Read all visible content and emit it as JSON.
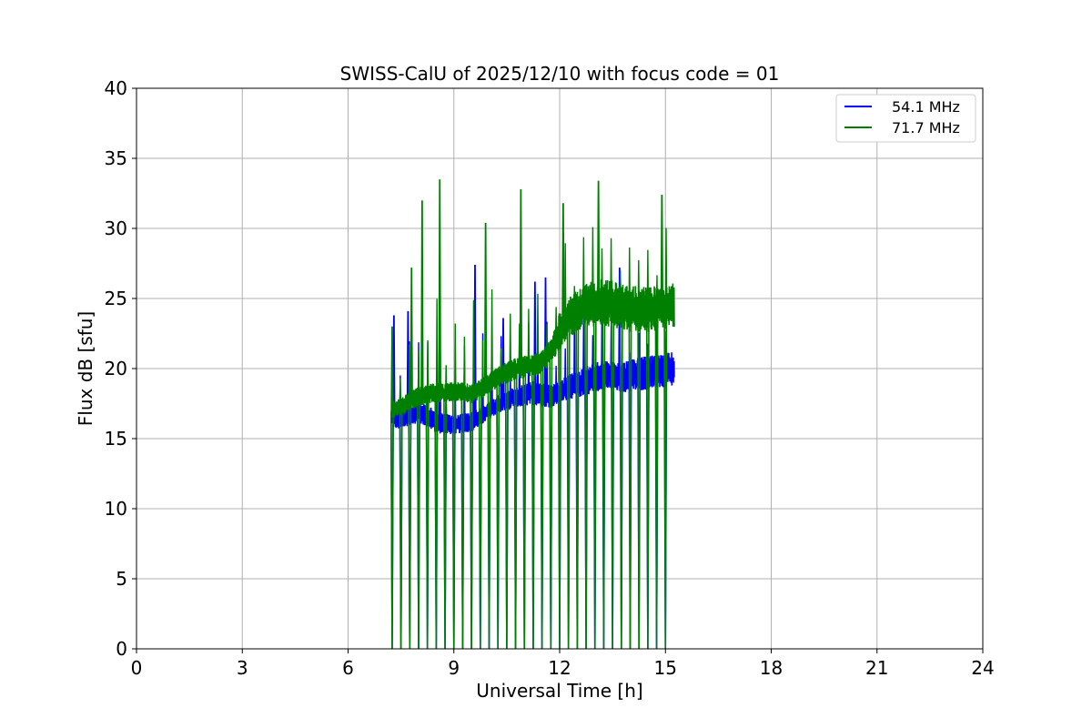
{
  "chart_data": {
    "type": "line",
    "title": "SWISS-CalU of 2025/12/10 with focus code = 01",
    "xlabel": "Universal Time [h]",
    "ylabel": "Flux dB [sfu]",
    "xlim": [
      0,
      24
    ],
    "ylim": [
      0,
      40
    ],
    "xticks": [
      0,
      3,
      6,
      9,
      12,
      15,
      18,
      21,
      24
    ],
    "yticks": [
      0,
      5,
      10,
      15,
      20,
      25,
      30,
      35,
      40
    ],
    "grid": true,
    "legend_position": "top-right",
    "series": [
      {
        "name": "54.1 MHz",
        "color": "#0000ff",
        "x": [
          7.25,
          7.5,
          7.75,
          8.0,
          8.25,
          8.5,
          8.75,
          9.0,
          9.25,
          9.5,
          9.75,
          10.0,
          10.25,
          10.5,
          10.75,
          11.0,
          11.25,
          11.5,
          11.75,
          12.0,
          12.25,
          12.5,
          12.75,
          13.0,
          13.25,
          13.5,
          13.75,
          14.0,
          14.25,
          14.5,
          14.75,
          15.0,
          15.25
        ],
        "y": [
          16.5,
          16.3,
          16.8,
          16.9,
          16.6,
          16.2,
          16.0,
          15.9,
          16.0,
          16.1,
          16.4,
          16.9,
          17.2,
          17.6,
          17.8,
          17.9,
          18.1,
          18.0,
          17.8,
          18.0,
          18.4,
          18.5,
          18.8,
          19.0,
          19.2,
          19.1,
          19.0,
          19.1,
          19.3,
          19.4,
          19.5,
          19.6,
          19.8
        ],
        "lower": [
          15.8,
          15.6,
          16.0,
          16.1,
          15.8,
          15.4,
          15.3,
          15.3,
          15.4,
          15.5,
          15.9,
          16.4,
          16.8,
          17.0,
          17.2,
          17.3,
          17.4,
          17.3,
          17.2,
          17.5,
          17.8,
          17.9,
          18.1,
          18.3,
          18.5,
          18.4,
          18.3,
          18.3,
          18.4,
          18.5,
          18.6,
          18.6,
          18.7
        ],
        "upper": [
          17.2,
          17.0,
          17.5,
          17.6,
          17.4,
          17.0,
          16.8,
          16.7,
          16.8,
          16.9,
          17.2,
          17.6,
          18.1,
          18.4,
          18.7,
          18.9,
          19.1,
          19.0,
          18.8,
          19.1,
          19.6,
          19.8,
          20.2,
          20.4,
          20.6,
          20.5,
          20.4,
          20.6,
          20.8,
          20.9,
          21.0,
          21.1,
          21.2
        ],
        "spikes": [
          [
            7.3,
            23.8
          ],
          [
            7.7,
            24.1
          ],
          [
            8.6,
            26.2
          ],
          [
            9.6,
            27.4
          ],
          [
            10.4,
            23.6
          ],
          [
            11.3,
            26.2
          ],
          [
            11.6,
            26.5
          ],
          [
            13.7,
            27.2
          ]
        ]
      },
      {
        "name": "71.7 MHz",
        "color": "#008000",
        "x": [
          7.25,
          7.5,
          7.75,
          8.0,
          8.25,
          8.5,
          8.75,
          9.0,
          9.25,
          9.5,
          9.75,
          10.0,
          10.25,
          10.5,
          10.75,
          11.0,
          11.25,
          11.5,
          11.75,
          12.0,
          12.25,
          12.5,
          12.75,
          13.0,
          13.25,
          13.5,
          13.75,
          14.0,
          14.25,
          14.5,
          14.75,
          15.0,
          15.25
        ],
        "y": [
          17.0,
          17.2,
          17.6,
          17.9,
          18.1,
          18.2,
          18.2,
          18.3,
          18.2,
          18.1,
          18.4,
          18.9,
          19.3,
          19.6,
          19.9,
          20.0,
          20.1,
          20.4,
          21.2,
          22.7,
          23.6,
          24.0,
          24.3,
          24.6,
          24.6,
          24.4,
          24.2,
          24.1,
          24.1,
          24.1,
          24.2,
          24.3,
          24.4
        ],
        "lower": [
          16.4,
          16.6,
          17.0,
          17.3,
          17.5,
          17.6,
          17.6,
          17.7,
          17.6,
          17.5,
          17.8,
          18.2,
          18.6,
          18.9,
          19.2,
          19.3,
          19.4,
          19.6,
          20.3,
          21.4,
          22.2,
          22.6,
          22.9,
          23.0,
          23.0,
          22.8,
          22.7,
          22.6,
          22.6,
          22.6,
          22.7,
          22.8,
          22.9
        ],
        "upper": [
          17.8,
          18.0,
          18.4,
          18.7,
          18.9,
          19.0,
          19.0,
          19.1,
          19.0,
          18.9,
          19.2,
          19.7,
          20.1,
          20.5,
          20.8,
          20.9,
          21.0,
          21.3,
          22.1,
          24.1,
          25.1,
          25.6,
          26.1,
          26.4,
          26.5,
          26.3,
          26.1,
          25.9,
          25.9,
          25.8,
          25.9,
          26.0,
          26.1
        ],
        "spikes": [
          [
            7.25,
            23.0
          ],
          [
            7.8,
            27.2
          ],
          [
            8.1,
            32.0
          ],
          [
            8.6,
            33.5
          ],
          [
            9.9,
            30.4
          ],
          [
            10.9,
            32.8
          ],
          [
            12.1,
            31.8
          ],
          [
            13.1,
            33.4
          ],
          [
            14.9,
            32.4
          ]
        ],
        "dips_x": [
          7.25,
          7.5,
          7.75,
          8.0,
          8.25,
          8.5,
          8.75,
          9.0,
          9.25,
          9.5,
          9.75,
          10.0,
          10.25,
          10.5,
          10.75,
          11.0,
          11.25,
          11.5,
          11.75,
          12.0,
          12.25,
          12.5,
          12.75,
          13.0,
          13.25,
          13.5,
          13.75,
          14.0,
          14.25,
          14.5,
          14.75,
          15.0
        ],
        "dip_value": 0
      }
    ]
  }
}
